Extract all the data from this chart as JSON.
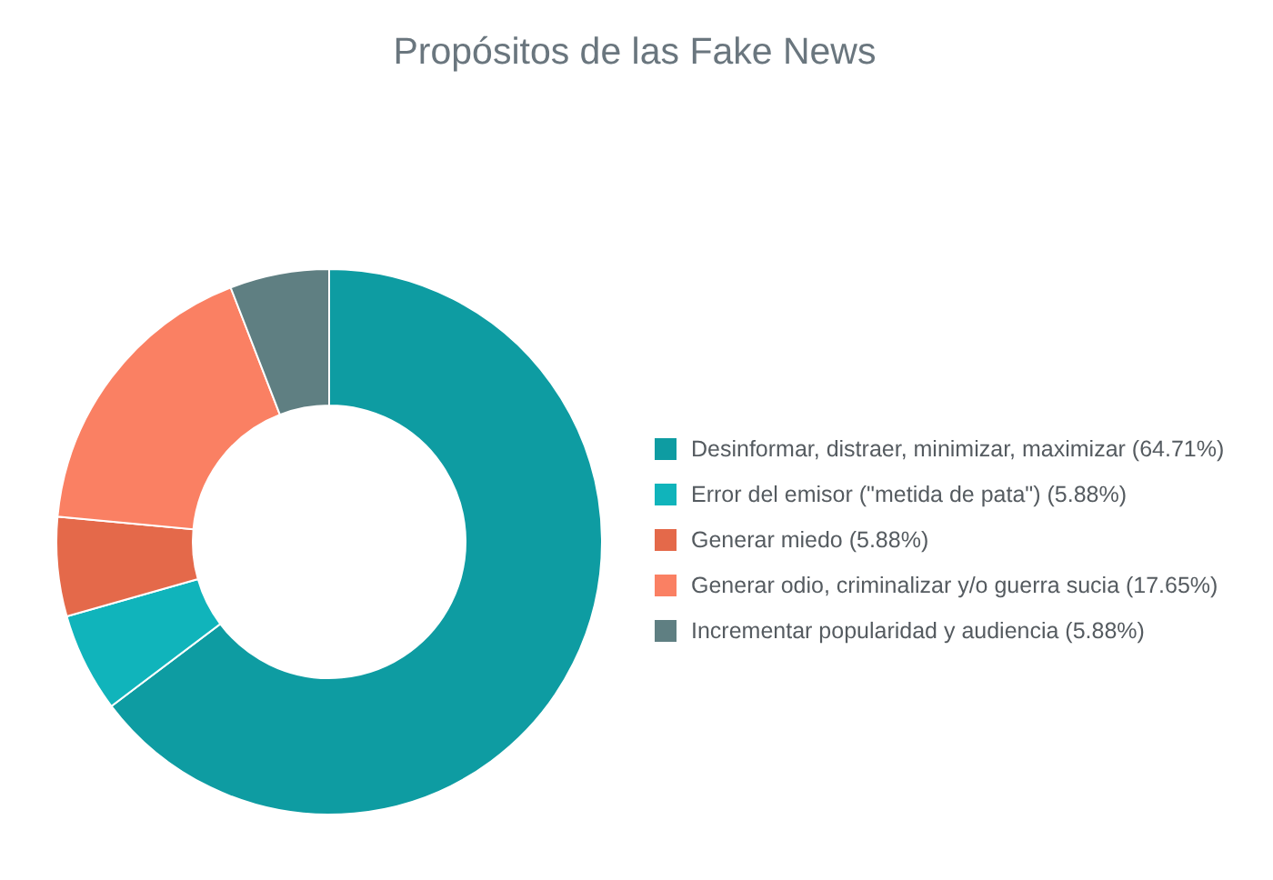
{
  "chart_data": {
    "type": "donut",
    "title": "Propósitos de las Fake News",
    "categories": [
      "Desinformar, distraer, minimizar, maximizar (64.71%)",
      "Error del emisor (\"metida de pata\") (5.88%)",
      "Generar miedo (5.88%)",
      "Generar odio, criminalizar y/o guerra sucia (17.65%)",
      "Incrementar popularidad y audiencia (5.88%)"
    ],
    "values": [
      64.71,
      5.88,
      5.88,
      17.65,
      5.88
    ],
    "colors": [
      "#0e9ca2",
      "#10b4bb",
      "#e4694a",
      "#fa8063",
      "#5f7f82"
    ],
    "legend": "right"
  }
}
